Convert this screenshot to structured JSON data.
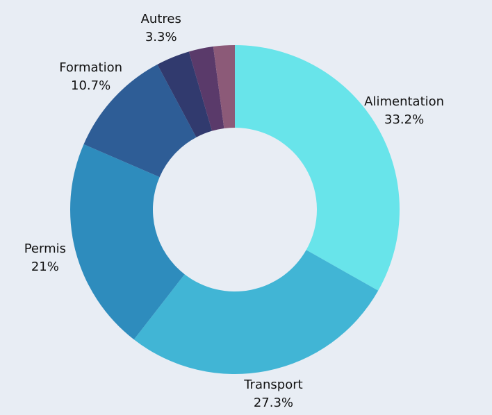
{
  "chart_data": {
    "type": "donut",
    "categories": [
      "Alimentation",
      "Transport",
      "Permis",
      "Formation",
      "Autres",
      null,
      null
    ],
    "values": [
      33.2,
      27.3,
      21,
      10.7,
      3.3,
      2.4,
      2.1
    ],
    "value_labels": [
      "33.2%",
      "27.3%",
      "21%",
      "10.7%",
      "3.3%",
      null,
      null
    ],
    "colors": [
      "#68e4ea",
      "#41b5d5",
      "#2e8cbd",
      "#2e5d96",
      "#313a6e",
      "#5a3a6a",
      "#8c5a78"
    ]
  }
}
